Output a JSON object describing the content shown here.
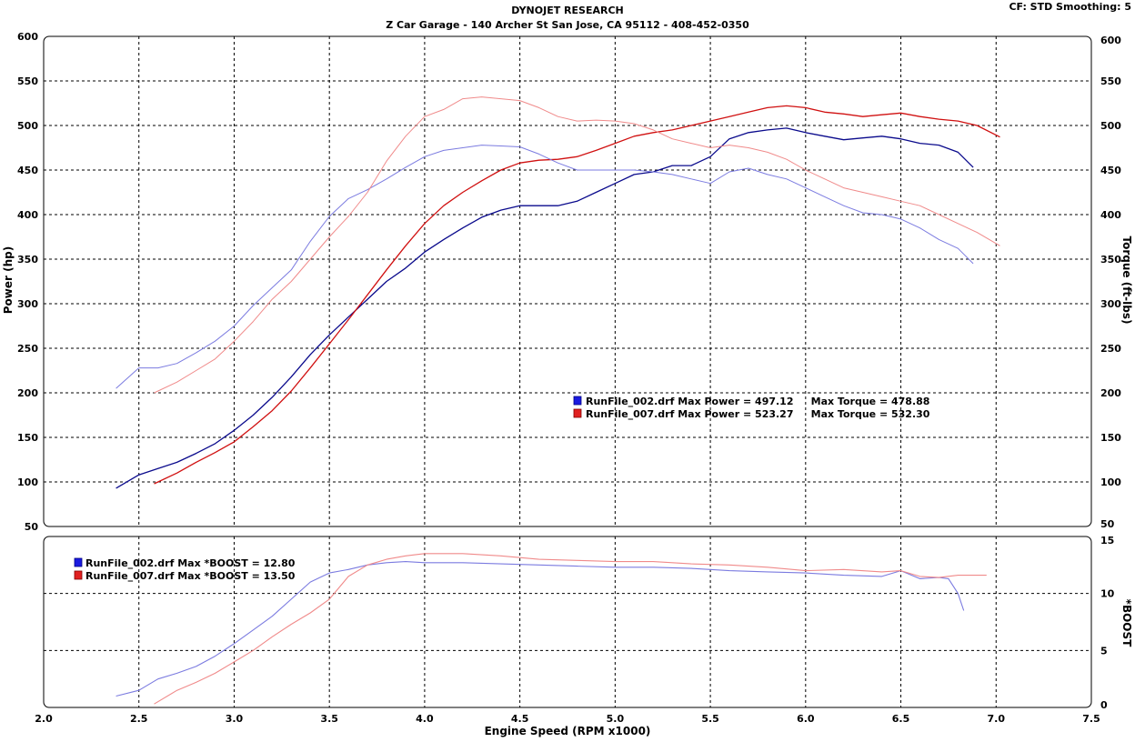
{
  "header": {
    "title": "DYNOJET RESEARCH",
    "subtitle": "Z Car Garage - 140 Archer St San Jose, CA 95112 - 408-452-0350",
    "settings": "CF: STD  Smoothing: 5"
  },
  "colors": {
    "run002_power": "#0a0a8c",
    "run002_torque": "#7b7be0",
    "run007_power": "#d01010",
    "run007_torque": "#f08a8a",
    "grid": "#000000"
  },
  "chart_data": [
    {
      "type": "line",
      "xlabel": "Engine Speed (RPM x1000)",
      "ylabel": "Power (hp)",
      "y2label": "Torque (ft-lbs)",
      "xlim": [
        2.0,
        7.5
      ],
      "ylim": [
        50,
        600
      ],
      "y2lim": [
        50,
        600
      ],
      "x_ticks": [
        "2.0",
        "2.5",
        "3.0",
        "3.5",
        "4.0",
        "4.5",
        "5.0",
        "5.5",
        "6.0",
        "6.5",
        "7.0",
        "7.5"
      ],
      "y_ticks": [
        "50",
        "100",
        "150",
        "200",
        "250",
        "300",
        "350",
        "400",
        "450",
        "500",
        "550",
        "600"
      ],
      "grid": true,
      "legend": [
        "RunFile_002.drf Max Power = 497.12     Max Torque = 478.88",
        "RunFile_007.drf Max Power = 523.27     Max Torque = 532.30"
      ],
      "series": [
        {
          "axis": "power",
          "run": "002",
          "x": [
            2.38,
            2.5,
            2.6,
            2.7,
            2.8,
            2.9,
            3.0,
            3.1,
            3.2,
            3.3,
            3.4,
            3.5,
            3.6,
            3.7,
            3.8,
            3.9,
            4.0,
            4.1,
            4.2,
            4.3,
            4.4,
            4.5,
            4.6,
            4.7,
            4.8,
            4.9,
            5.0,
            5.1,
            5.2,
            5.3,
            5.4,
            5.5,
            5.6,
            5.7,
            5.8,
            5.9,
            6.0,
            6.1,
            6.2,
            6.3,
            6.4,
            6.5,
            6.6,
            6.7,
            6.8,
            6.88
          ],
          "values": [
            93,
            108,
            115,
            122,
            132,
            143,
            158,
            175,
            195,
            218,
            243,
            265,
            285,
            305,
            325,
            340,
            358,
            372,
            385,
            397,
            405,
            410,
            410,
            410,
            415,
            425,
            435,
            445,
            448,
            455,
            455,
            465,
            485,
            492,
            495,
            497,
            492,
            488,
            484,
            486,
            488,
            485,
            480,
            478,
            470,
            453
          ]
        },
        {
          "axis": "power",
          "run": "007",
          "x": [
            2.58,
            2.7,
            2.8,
            2.9,
            3.0,
            3.1,
            3.2,
            3.3,
            3.4,
            3.5,
            3.6,
            3.7,
            3.8,
            3.9,
            4.0,
            4.1,
            4.2,
            4.3,
            4.4,
            4.5,
            4.6,
            4.7,
            4.8,
            4.9,
            5.0,
            5.1,
            5.2,
            5.3,
            5.4,
            5.5,
            5.6,
            5.7,
            5.8,
            5.9,
            6.0,
            6.1,
            6.2,
            6.3,
            6.4,
            6.5,
            6.6,
            6.7,
            6.8,
            6.9,
            7.02
          ],
          "values": [
            98,
            110,
            122,
            133,
            145,
            162,
            180,
            202,
            228,
            255,
            282,
            310,
            338,
            365,
            390,
            410,
            425,
            438,
            450,
            458,
            461,
            462,
            465,
            472,
            480,
            488,
            492,
            495,
            500,
            505,
            510,
            515,
            520,
            522,
            520,
            515,
            513,
            510,
            512,
            514,
            510,
            507,
            505,
            500,
            487
          ]
        },
        {
          "axis": "torque",
          "run": "002",
          "x": [
            2.38,
            2.5,
            2.6,
            2.7,
            2.8,
            2.9,
            3.0,
            3.1,
            3.2,
            3.3,
            3.4,
            3.5,
            3.6,
            3.7,
            3.8,
            3.9,
            4.0,
            4.1,
            4.2,
            4.3,
            4.4,
            4.5,
            4.6,
            4.7,
            4.8,
            4.9,
            5.0,
            5.1,
            5.2,
            5.3,
            5.4,
            5.5,
            5.6,
            5.7,
            5.8,
            5.9,
            6.0,
            6.1,
            6.2,
            6.3,
            6.4,
            6.5,
            6.6,
            6.7,
            6.8,
            6.88
          ],
          "values": [
            205,
            228,
            228,
            233,
            245,
            258,
            275,
            298,
            318,
            338,
            370,
            398,
            418,
            428,
            440,
            453,
            465,
            472,
            475,
            478,
            477,
            476,
            468,
            458,
            450,
            450,
            450,
            450,
            448,
            445,
            440,
            435,
            448,
            452,
            445,
            440,
            430,
            420,
            410,
            402,
            400,
            395,
            385,
            372,
            362,
            345
          ]
        },
        {
          "axis": "torque",
          "run": "007",
          "x": [
            2.58,
            2.7,
            2.8,
            2.9,
            3.0,
            3.1,
            3.2,
            3.3,
            3.4,
            3.5,
            3.6,
            3.7,
            3.8,
            3.9,
            4.0,
            4.1,
            4.2,
            4.3,
            4.4,
            4.5,
            4.6,
            4.7,
            4.8,
            4.9,
            5.0,
            5.1,
            5.2,
            5.3,
            5.4,
            5.5,
            5.6,
            5.7,
            5.8,
            5.9,
            6.0,
            6.1,
            6.2,
            6.3,
            6.4,
            6.5,
            6.6,
            6.7,
            6.8,
            6.9,
            7.02
          ],
          "values": [
            200,
            212,
            225,
            238,
            258,
            280,
            305,
            325,
            350,
            375,
            398,
            425,
            460,
            488,
            510,
            518,
            530,
            532,
            530,
            528,
            520,
            510,
            505,
            506,
            505,
            502,
            495,
            485,
            480,
            475,
            478,
            475,
            470,
            462,
            450,
            440,
            430,
            425,
            420,
            415,
            410,
            400,
            390,
            380,
            365
          ]
        }
      ]
    },
    {
      "type": "line",
      "xlabel": "Engine Speed (RPM x1000)",
      "y2label": "*BOOST",
      "xlim": [
        2.0,
        7.5
      ],
      "ylim": [
        0,
        15
      ],
      "y_ticks": [
        "0",
        "5",
        "10",
        "15"
      ],
      "grid": true,
      "legend": [
        "RunFile_002.drf Max *BOOST = 12.80",
        "RunFile_007.drf Max *BOOST = 13.50"
      ],
      "series": [
        {
          "run": "002",
          "x": [
            2.38,
            2.5,
            2.6,
            2.7,
            2.8,
            2.9,
            3.0,
            3.1,
            3.2,
            3.3,
            3.4,
            3.5,
            3.6,
            3.7,
            3.8,
            3.9,
            4.0,
            4.2,
            4.4,
            4.6,
            4.8,
            5.0,
            5.2,
            5.4,
            5.6,
            5.8,
            6.0,
            6.2,
            6.4,
            6.5,
            6.6,
            6.7,
            6.75,
            6.8,
            6.83
          ],
          "values": [
            1.0,
            1.5,
            2.5,
            3.0,
            3.6,
            4.5,
            5.6,
            6.8,
            8.0,
            9.5,
            11.0,
            11.8,
            12.1,
            12.5,
            12.7,
            12.8,
            12.7,
            12.7,
            12.6,
            12.5,
            12.4,
            12.3,
            12.3,
            12.2,
            12.0,
            11.9,
            11.8,
            11.6,
            11.5,
            12.0,
            11.3,
            11.4,
            11.3,
            10.0,
            8.5
          ]
        },
        {
          "run": "007",
          "x": [
            2.58,
            2.7,
            2.8,
            2.9,
            3.0,
            3.1,
            3.2,
            3.3,
            3.4,
            3.5,
            3.6,
            3.7,
            3.8,
            3.9,
            4.0,
            4.2,
            4.4,
            4.6,
            4.8,
            5.0,
            5.2,
            5.4,
            5.6,
            5.8,
            6.0,
            6.2,
            6.4,
            6.5,
            6.6,
            6.7,
            6.8,
            6.95
          ],
          "values": [
            0.3,
            1.5,
            2.2,
            3.0,
            4.0,
            5.0,
            6.2,
            7.3,
            8.3,
            9.5,
            11.5,
            12.5,
            13.0,
            13.3,
            13.5,
            13.5,
            13.3,
            13.0,
            12.9,
            12.8,
            12.8,
            12.6,
            12.5,
            12.3,
            12.0,
            12.1,
            11.9,
            12.0,
            11.5,
            11.4,
            11.6,
            11.6
          ]
        }
      ]
    }
  ]
}
